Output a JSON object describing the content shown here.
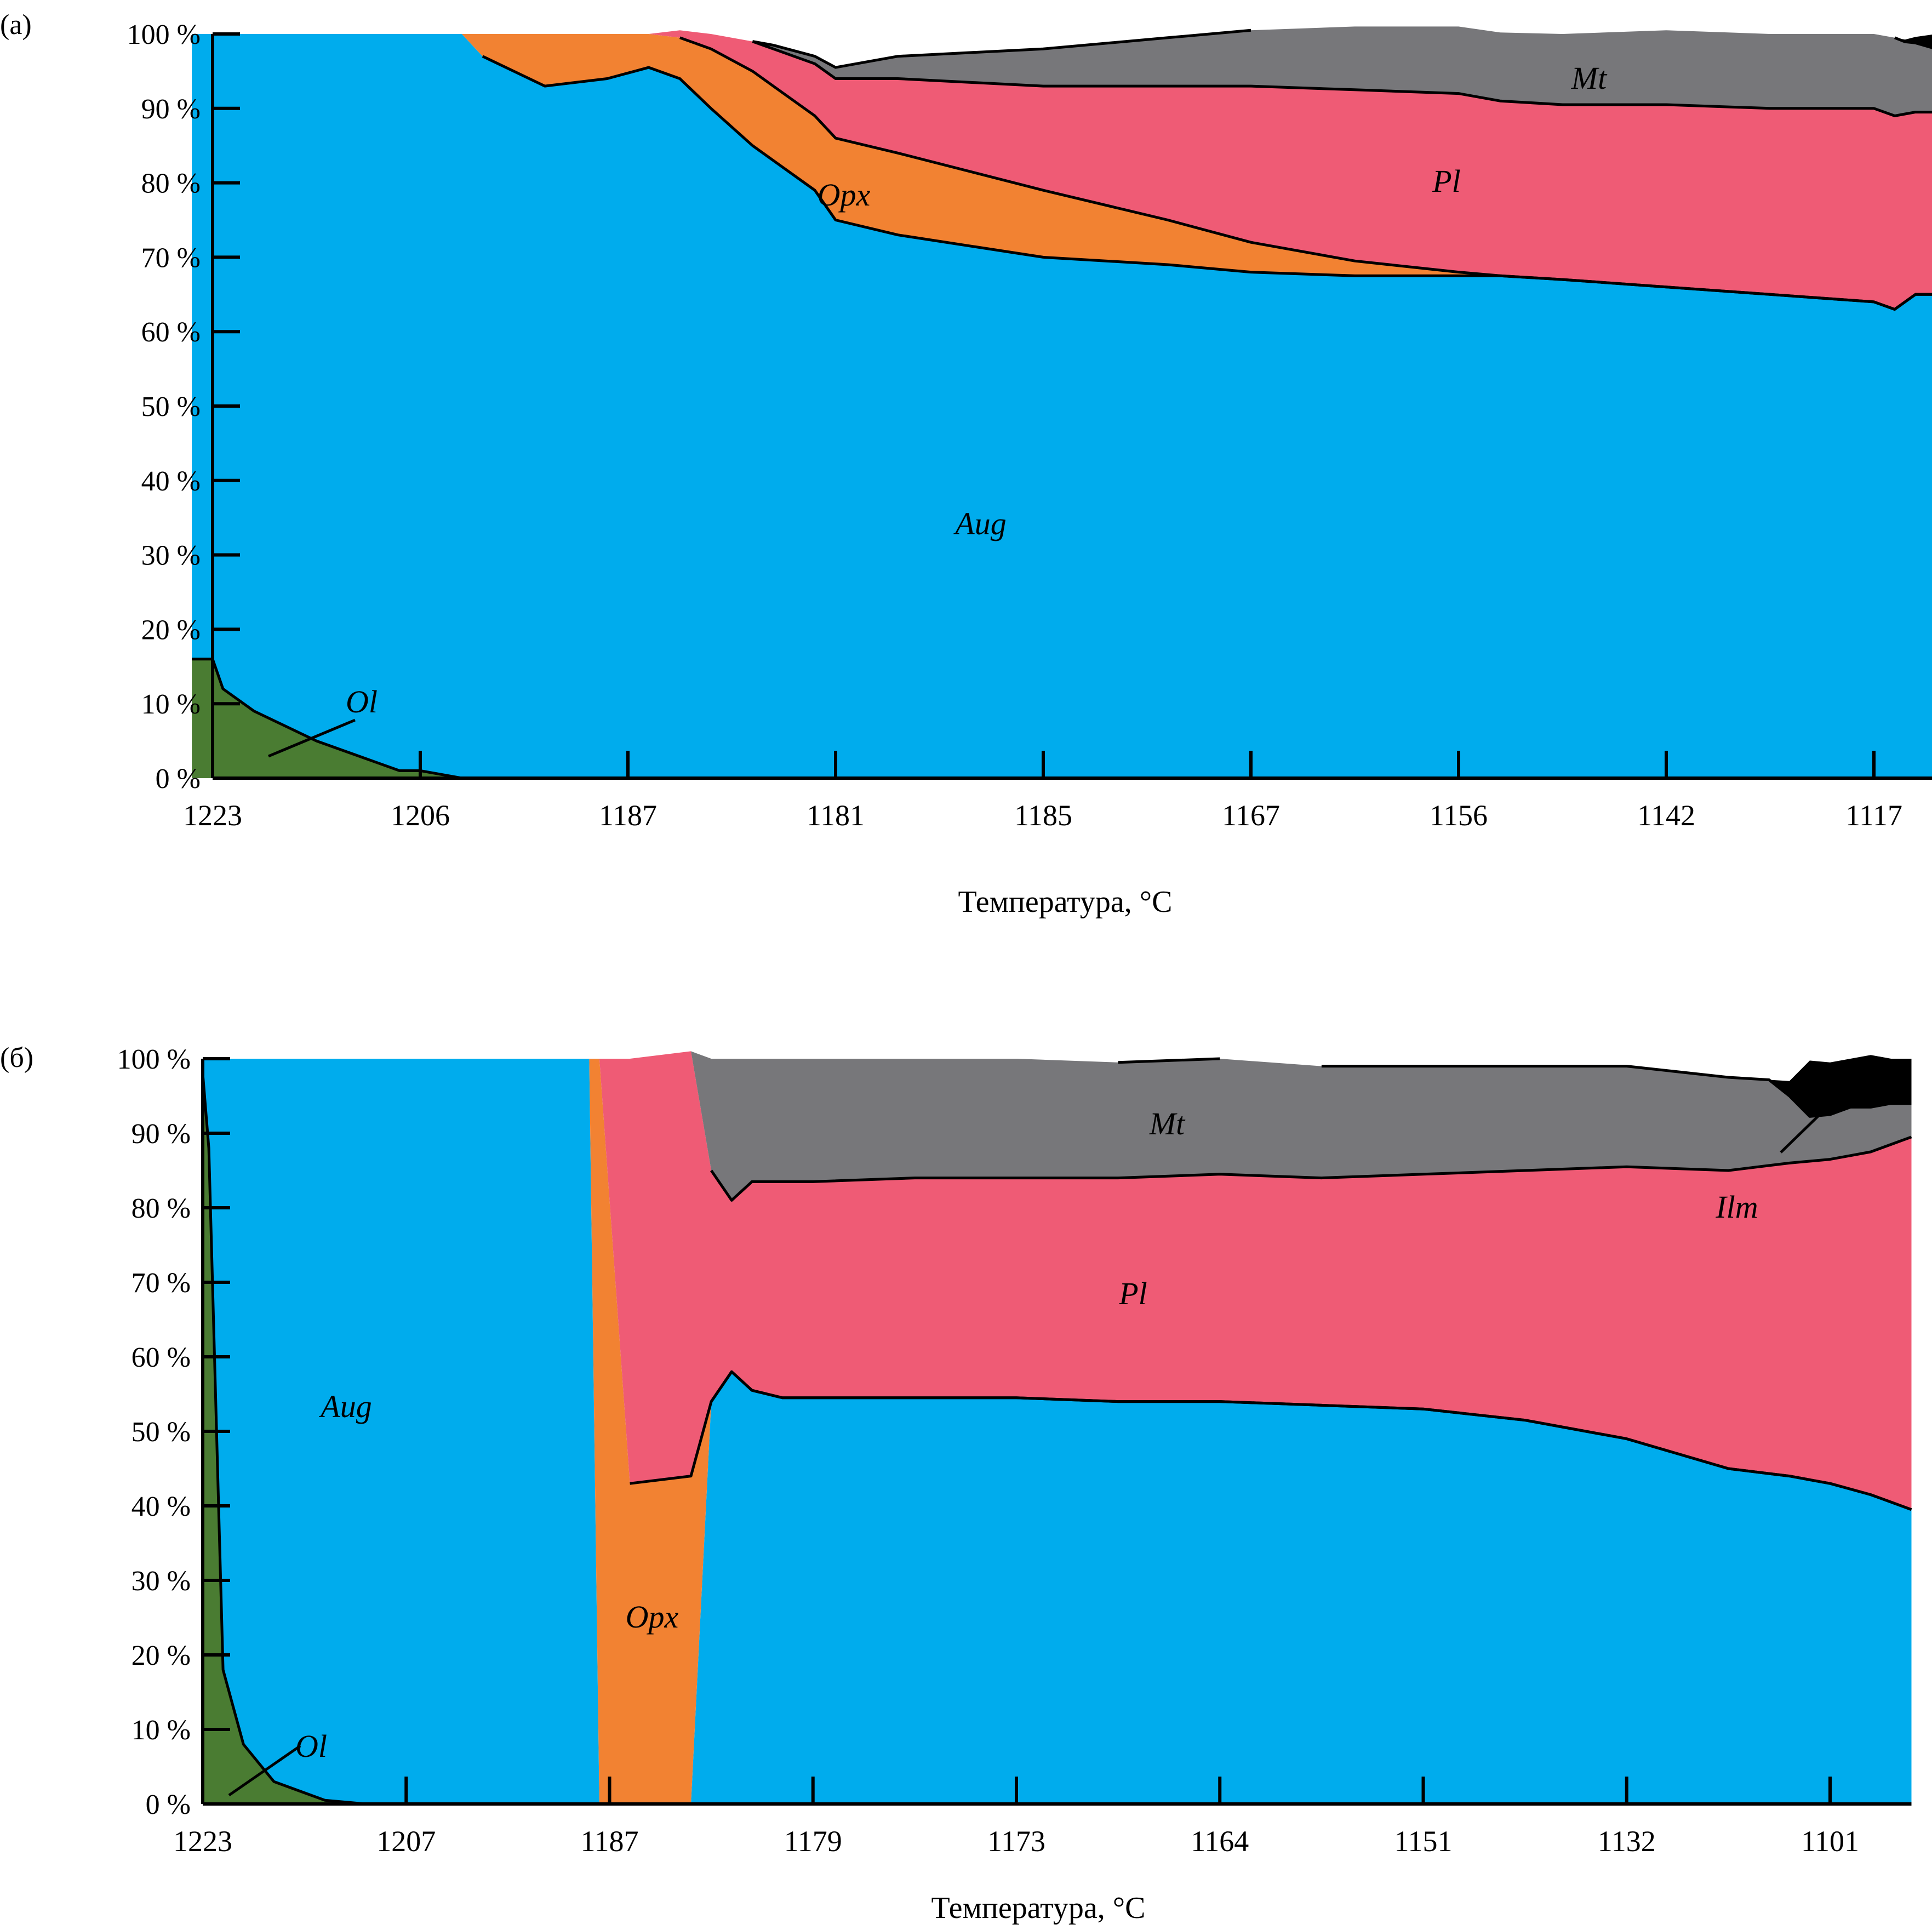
{
  "chart_data": [
    {
      "panel_label": "(а)",
      "type": "area",
      "stacked": true,
      "normalized": true,
      "xlabel": "Температура, °C",
      "x_categories": [
        "1223",
        "1206",
        "1187",
        "1181",
        "1185",
        "1167",
        "1156",
        "1142",
        "1117"
      ],
      "y_ticks": [
        "0 %",
        "10 %",
        "20 %",
        "30 %",
        "40 %",
        "50 %",
        "60 %",
        "70 %",
        "80 %",
        "90 %",
        "100 %"
      ],
      "ylim": [
        0,
        100
      ],
      "x_index_range": [
        -0.1,
        8.3
      ],
      "series": [
        {
          "name": "Ol",
          "color": "#4a7c32",
          "x": [
            -0.1,
            0.0,
            0.05,
            0.2,
            0.5,
            0.8,
            0.9,
            1.0,
            1.1,
            1.2
          ],
          "values": [
            16,
            16,
            12,
            9,
            5,
            2,
            1,
            1,
            0.5,
            0
          ]
        },
        {
          "name": "Aug",
          "color": "#00aced",
          "x": [
            -0.1,
            0.0,
            0.05,
            0.2,
            0.5,
            0.8,
            0.9,
            1.0,
            1.1,
            1.2,
            1.3,
            1.6,
            1.9,
            2.1,
            2.25,
            2.4,
            2.6,
            2.9,
            3.0,
            3.3,
            4.0,
            4.6,
            5.0,
            5.5,
            6.0,
            6.2,
            6.5,
            7.0,
            7.5,
            8.0,
            8.1,
            8.2,
            8.3
          ],
          "values": [
            84,
            84,
            88,
            91,
            95,
            98,
            99,
            99,
            99.5,
            100,
            97,
            93,
            94,
            95.5,
            94,
            90,
            85,
            79,
            75,
            73,
            70,
            69,
            68,
            67.5,
            67.5,
            67.5,
            67,
            66,
            65,
            64,
            63,
            65,
            65
          ]
        },
        {
          "name": "Opx",
          "color": "#f28232",
          "x": [
            -0.1,
            1.2,
            1.3,
            1.6,
            1.9,
            2.1,
            2.25,
            2.4,
            2.6,
            2.9,
            3.0,
            3.3,
            4.0,
            4.6,
            5.0,
            5.5,
            6.0,
            6.2,
            6.5,
            8.3
          ],
          "values": [
            0,
            0,
            3,
            7,
            6,
            4.5,
            5.5,
            8,
            10,
            10,
            11,
            11,
            9,
            6,
            4,
            2,
            0.5,
            0,
            0,
            0
          ]
        },
        {
          "name": "Pl",
          "color": "#ef5b75",
          "x": [
            -0.1,
            2.1,
            2.25,
            2.4,
            2.6,
            2.9,
            3.0,
            3.3,
            4.0,
            4.6,
            5.0,
            5.5,
            6.0,
            6.2,
            6.5,
            7.0,
            7.5,
            8.0,
            8.1,
            8.2,
            8.3
          ],
          "values": [
            0,
            0,
            1,
            2,
            4,
            7,
            8,
            10,
            14,
            18,
            21,
            23,
            24,
            23.5,
            23.5,
            24.5,
            25,
            26,
            26,
            24.5,
            24.5
          ]
        },
        {
          "name": "Mt",
          "color": "#77777a",
          "x": [
            -0.1,
            2.6,
            2.7,
            2.9,
            3.0,
            3.3,
            4.0,
            4.6,
            5.0,
            5.5,
            6.0,
            6.5,
            7.0,
            7.5,
            8.0,
            8.1,
            8.15,
            8.3
          ],
          "values": [
            0,
            0,
            0.5,
            1,
            1.5,
            3,
            5,
            6.5,
            7.5,
            8.5,
            9,
            9.5,
            10,
            10,
            10,
            10.5,
            9.7,
            8.5
          ]
        },
        {
          "name": "",
          "color": "#000000",
          "x": [
            -0.1,
            8.1,
            8.15,
            8.2,
            8.3
          ],
          "values": [
            0,
            0,
            0.3,
            0.8,
            2
          ]
        }
      ]
    },
    {
      "panel_label": "(б)",
      "type": "area",
      "stacked": true,
      "normalized": true,
      "xlabel": "Температура, °C",
      "x_categories": [
        "1223",
        "1207",
        "1187",
        "1179",
        "1173",
        "1164",
        "1151",
        "1132",
        "1101"
      ],
      "y_ticks": [
        "0 %",
        "10 %",
        "20 %",
        "30 %",
        "40 %",
        "50 %",
        "60 %",
        "70 %",
        "80 %",
        "90 %",
        "100 %"
      ],
      "ylim": [
        0,
        100
      ],
      "x_index_range": [
        0.0,
        8.4
      ],
      "series": [
        {
          "name": "Ol",
          "color": "#4a7c32",
          "x": [
            0.0,
            0.03,
            0.1,
            0.2,
            0.35,
            0.5,
            0.6,
            0.8,
            8.4
          ],
          "values": [
            98,
            88,
            18,
            8,
            3,
            1.5,
            0.5,
            0,
            0
          ]
        },
        {
          "name": "Aug",
          "color": "#00aced",
          "x": [
            0.0,
            0.03,
            0.1,
            0.2,
            0.35,
            0.5,
            0.6,
            0.8,
            1.9,
            1.95,
            2.1,
            2.4,
            2.5,
            2.6,
            2.7,
            2.85,
            3.0,
            3.5,
            4.0,
            4.5,
            5.0,
            5.5,
            6.0,
            6.5,
            7.0,
            7.5,
            7.8,
            8.0,
            8.2,
            8.4
          ],
          "values": [
            2,
            12,
            82,
            92,
            97,
            98.5,
            99.5,
            100,
            100,
            0,
            0,
            0,
            54,
            58,
            55.5,
            54.5,
            54.5,
            54.5,
            54.5,
            54,
            54,
            53.5,
            53,
            51.5,
            49,
            45,
            44,
            43,
            41.5,
            39.5
          ]
        },
        {
          "name": "Opx",
          "color": "#f28232",
          "x": [
            0.0,
            1.9,
            1.95,
            2.1,
            2.4,
            2.5,
            2.6,
            8.4
          ],
          "values": [
            0,
            0,
            100,
            43,
            44,
            0,
            0,
            0
          ]
        },
        {
          "name": "Pl",
          "color": "#ef5b75",
          "x": [
            0.0,
            1.95,
            2.1,
            2.4,
            2.5,
            2.6,
            2.7,
            2.85,
            3.0,
            3.5,
            4.0,
            4.5,
            5.0,
            5.5,
            6.0,
            6.5,
            7.0,
            7.5,
            7.8,
            8.0,
            8.2,
            8.4
          ],
          "values": [
            0,
            0,
            57,
            57,
            31,
            23,
            28,
            29,
            29,
            29.5,
            29.5,
            30,
            30.5,
            30.5,
            31.5,
            33.5,
            36.5,
            40,
            42,
            43.5,
            46,
            50
          ]
        },
        {
          "name": "Mt",
          "color": "#77777a",
          "x": [
            0.0,
            2.4,
            2.5,
            2.6,
            2.7,
            2.85,
            3.0,
            3.5,
            4.0,
            4.5,
            5.0,
            5.5,
            6.0,
            6.5,
            7.0,
            7.5,
            7.7,
            7.8,
            7.9,
            8.0,
            8.1,
            8.2,
            8.3,
            8.4
          ],
          "values": [
            0,
            0,
            15,
            19,
            16.5,
            16.5,
            16.5,
            16,
            16,
            15.5,
            15.5,
            15,
            14.5,
            14,
            13.5,
            12.5,
            11.5,
            9,
            6,
            6,
            6.5,
            6,
            5.5,
            4.5
          ]
        },
        {
          "name": "Ilm",
          "color": "#000000",
          "x": [
            0.0,
            7.5,
            7.7,
            7.8,
            7.9,
            8.0,
            8.1,
            8.2,
            8.3,
            8.4
          ],
          "values": [
            0,
            0,
            0,
            2,
            7.5,
            7,
            6.5,
            7,
            6,
            6
          ]
        }
      ]
    }
  ]
}
